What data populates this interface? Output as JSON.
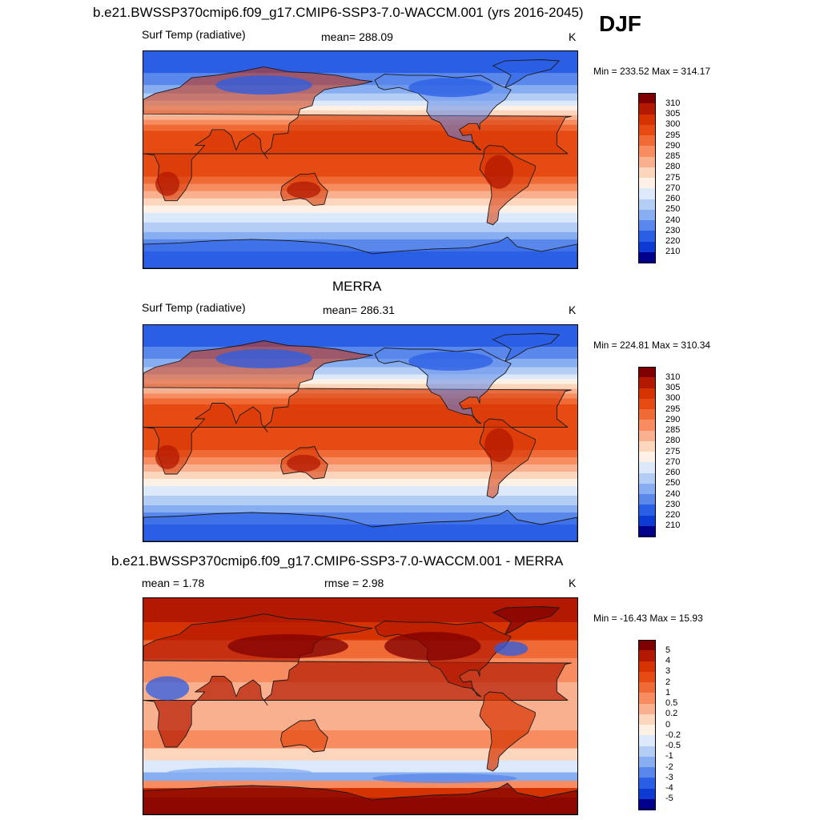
{
  "season": "DJF",
  "panels": [
    {
      "title": "b.e21.BWSSP370cmip6.f09_g17.CMIP6-SSP3-7.0-WACCM.001 (yrs 2016-2045)",
      "left_label": "Surf Temp (radiative)",
      "center_label": "mean= 288.09",
      "units": "K",
      "minmax": "Min = 233.52 Max = 314.17",
      "kind": "abs",
      "colorbar_levels": [
        "310",
        "305",
        "300",
        "295",
        "290",
        "285",
        "280",
        "275",
        "270",
        "260",
        "250",
        "240",
        "230",
        "220",
        "210"
      ]
    },
    {
      "title": "MERRA",
      "left_label": "Surf Temp (radiative)",
      "center_label": "mean= 286.31",
      "units": "K",
      "minmax": "Min = 224.81 Max = 310.34",
      "kind": "abs",
      "colorbar_levels": [
        "310",
        "305",
        "300",
        "295",
        "290",
        "285",
        "280",
        "275",
        "270",
        "260",
        "250",
        "240",
        "230",
        "220",
        "210"
      ]
    },
    {
      "title": "b.e21.BWSSP370cmip6.f09_g17.CMIP6-SSP3-7.0-WACCM.001 - MERRA",
      "left_label": "mean =   1.78",
      "center_label": "rmse =   2.98",
      "units": "K",
      "minmax": "Min = -16.43 Max =  15.93",
      "kind": "diff",
      "colorbar_levels": [
        "5",
        "4",
        "3",
        "2",
        "1",
        "0.5",
        "0.2",
        "0",
        "-0.2",
        "-0.5",
        "-1",
        "-2",
        "-3",
        "-4",
        "-5"
      ]
    }
  ],
  "colors": {
    "abs": [
      "#7f0000",
      "#b31800",
      "#d53302",
      "#e54b12",
      "#f06a36",
      "#f68c5f",
      "#f9b08e",
      "#fbd6bc",
      "#fdf0e4",
      "#dbe9fb",
      "#b3cdf5",
      "#87aef0",
      "#5a87ea",
      "#2a5ee5",
      "#0d3ad2",
      "#00008c"
    ],
    "diff": [
      "#7f0000",
      "#b31800",
      "#d53302",
      "#e54b12",
      "#f06a36",
      "#f68c5f",
      "#f9b08e",
      "#fbd6bc",
      "#fdf0e4",
      "#dbe9fb",
      "#b3cdf5",
      "#87aef0",
      "#5a87ea",
      "#2a5ee5",
      "#0d3ad2",
      "#00008c"
    ]
  }
}
